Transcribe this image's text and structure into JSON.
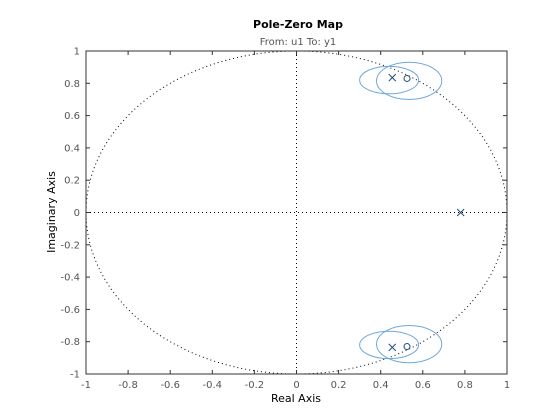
{
  "chart_data": {
    "type": "scatter",
    "title": "Pole-Zero Map",
    "subtitle": "From: u1  To: y1",
    "xlabel": "Real Axis",
    "ylabel": "Imaginary Axis",
    "xlim": [
      -1,
      1
    ],
    "ylim": [
      -1,
      1
    ],
    "xticks": [
      "-1",
      "-0.8",
      "-0.6",
      "-0.4",
      "-0.2",
      "0",
      "0.2",
      "0.4",
      "0.6",
      "0.8",
      "1"
    ],
    "yticks": [
      "-1",
      "-0.8",
      "-0.6",
      "-0.4",
      "-0.2",
      "0",
      "0.2",
      "0.4",
      "0.6",
      "0.8",
      "1"
    ],
    "grid": false,
    "unit_circle": true,
    "poles": [
      {
        "x": 0.455,
        "y": 0.835
      },
      {
        "x": 0.455,
        "y": -0.835
      },
      {
        "x": 0.78,
        "y": 0.0
      }
    ],
    "zeros": [
      {
        "x": 0.525,
        "y": 0.83
      },
      {
        "x": 0.525,
        "y": -0.83
      }
    ],
    "uncertainty_ellipses": [
      {
        "cx": 0.44,
        "cy": 0.82,
        "rx": 0.14,
        "ry": 0.085
      },
      {
        "cx": 0.535,
        "cy": 0.815,
        "rx": 0.155,
        "ry": 0.115
      },
      {
        "cx": 0.44,
        "cy": -0.82,
        "rx": 0.14,
        "ry": 0.085
      },
      {
        "cx": 0.535,
        "cy": -0.815,
        "rx": 0.155,
        "ry": 0.115
      }
    ],
    "colors": {
      "marker": "#1f4e79",
      "ellipse": "#6fa8dc",
      "reference": "#000000",
      "frame": "#333333"
    }
  }
}
